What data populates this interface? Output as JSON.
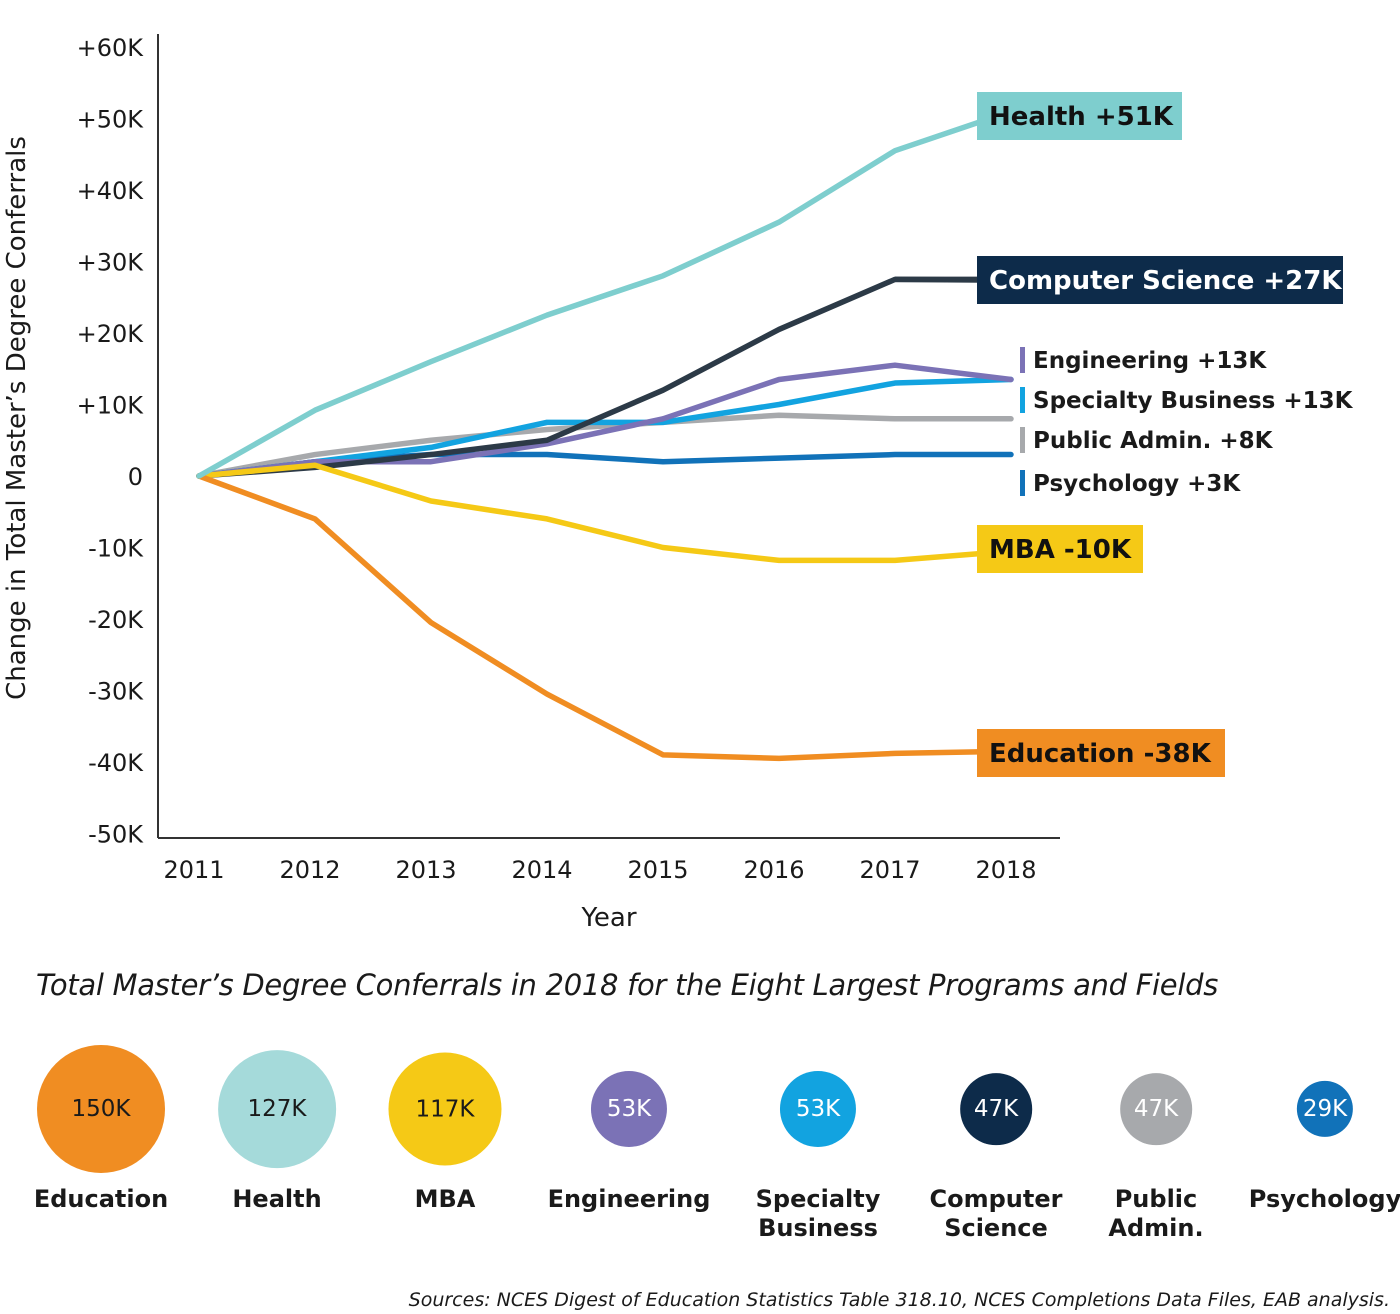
{
  "chart_data": {
    "type": "line",
    "xlabel": "Year",
    "ylabel": "Change in Total Master’s Degree Conferrals",
    "x": [
      2011,
      2012,
      2013,
      2014,
      2015,
      2016,
      2017,
      2018
    ],
    "ylim": [
      -50,
      60
    ],
    "y_ticks": [
      {
        "value": 60,
        "label": "+60K"
      },
      {
        "value": 50,
        "label": "+50K"
      },
      {
        "value": 40,
        "label": "+40K"
      },
      {
        "value": 30,
        "label": "+30K"
      },
      {
        "value": 20,
        "label": "+20K"
      },
      {
        "value": 10,
        "label": "+10K"
      },
      {
        "value": 0,
        "label": "0"
      },
      {
        "value": -10,
        "label": "-10K"
      },
      {
        "value": -20,
        "label": "-20K"
      },
      {
        "value": -30,
        "label": "-30K"
      },
      {
        "value": -40,
        "label": "-40K"
      },
      {
        "value": -50,
        "label": "-50K"
      }
    ],
    "x_tick_labels": [
      "2011",
      "2012",
      "2013",
      "2014",
      "2015",
      "2016",
      "2017",
      "2018"
    ],
    "grid": false,
    "series": [
      {
        "name": "Health",
        "label": "Health  +51K",
        "color": "#7ecece",
        "label_style": "box",
        "text_color": "#111111",
        "values": [
          0,
          9.2,
          16,
          22.5,
          28,
          35.5,
          45.5,
          51
        ]
      },
      {
        "name": "Computer Science",
        "label": "Computer Science  +27K",
        "color": "#2c3a47",
        "label_style": "box",
        "box_color": "#0d2b4a",
        "text_color": "#ffffff",
        "values": [
          0,
          1.2,
          3,
          5,
          12,
          20.5,
          27.5,
          27.5
        ]
      },
      {
        "name": "Engineering",
        "label": "Engineering +13K",
        "color": "#7b72b6",
        "label_style": "bar",
        "values": [
          0,
          2,
          2,
          4.5,
          8,
          13.5,
          15.5,
          13.5
        ]
      },
      {
        "name": "Specialty Business",
        "label": "Specialty Business +13K",
        "color": "#12a3e0",
        "label_style": "bar",
        "values": [
          0,
          2,
          4,
          7.5,
          7.5,
          10,
          13,
          13.5
        ]
      },
      {
        "name": "Public Admin.",
        "label": "Public Admin. +8K",
        "color": "#a7a9ac",
        "label_style": "bar",
        "values": [
          0,
          3,
          5,
          6.5,
          7.5,
          8.5,
          8,
          8
        ]
      },
      {
        "name": "Psychology",
        "label": "Psychology +3K",
        "color": "#1172b9",
        "label_style": "bar",
        "values": [
          0,
          2,
          3,
          3,
          2,
          2.5,
          3,
          3
        ]
      },
      {
        "name": "MBA",
        "label": "MBA  -10K",
        "color": "#f5c916",
        "label_style": "box",
        "text_color": "#111111",
        "values": [
          0,
          1.5,
          -3.5,
          -6,
          -10,
          -11.8,
          -11.8,
          -10.5
        ]
      },
      {
        "name": "Education",
        "label": "Education  -38K",
        "color": "#f08d22",
        "label_style": "box",
        "text_color": "#111111",
        "values": [
          0,
          -6,
          -20.5,
          -30.5,
          -39,
          -39.5,
          -38.8,
          -38.5
        ]
      }
    ]
  },
  "bubbles_title": "Total Master’s Degree Conferrals in 2018 for the Eight Largest Programs and Fields",
  "bubbles": [
    {
      "value": "150K",
      "amount": 150,
      "label": "Education",
      "color": "#f08d22",
      "text_color": "#1a1a1a"
    },
    {
      "value": "127K",
      "amount": 127,
      "label": "Health",
      "color": "#a5dada",
      "text_color": "#1a1a1a"
    },
    {
      "value": "117K",
      "amount": 117,
      "label": "MBA",
      "color": "#f5c916",
      "text_color": "#1a1a1a"
    },
    {
      "value": "53K",
      "amount": 53,
      "label": "Engineering",
      "color": "#7b72b6",
      "text_color": "#ffffff"
    },
    {
      "value": "53K",
      "amount": 53,
      "label": "Specialty Business",
      "color": "#12a3e0",
      "text_color": "#ffffff"
    },
    {
      "value": "47K",
      "amount": 47,
      "label": "Computer Science",
      "color": "#0d2b4a",
      "text_color": "#ffffff"
    },
    {
      "value": "47K",
      "amount": 47,
      "label": "Public Admin.",
      "color": "#a7a9ac",
      "text_color": "#ffffff"
    },
    {
      "value": "29K",
      "amount": 29,
      "label": "Psychology",
      "color": "#1172b9",
      "text_color": "#ffffff"
    }
  ],
  "source": "Sources: NCES Digest of Education Statistics Table 318.10, NCES Completions Data Files, EAB analysis."
}
